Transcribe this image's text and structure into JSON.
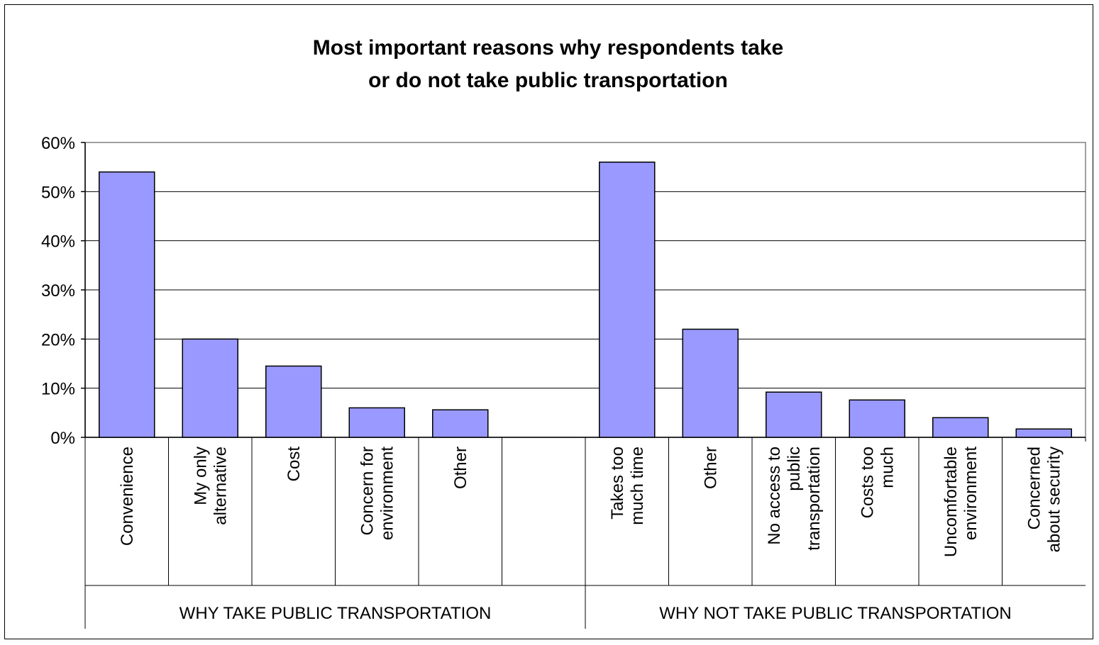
{
  "chart_data": {
    "type": "bar",
    "title_lines": [
      "Most important reasons why respondents take",
      "or do not take public transportation"
    ],
    "ylim": [
      0,
      0.6
    ],
    "yticks": [
      0,
      0.1,
      0.2,
      0.3,
      0.4,
      0.5,
      0.6
    ],
    "ytick_labels": [
      "0%",
      "10%",
      "20%",
      "30%",
      "40%",
      "50%",
      "60%"
    ],
    "grid": true,
    "bar_color": "#9999ff",
    "groups": [
      {
        "name": "WHY TAKE PUBLIC TRANSPORTATION",
        "categories": [
          {
            "label": [
              "Convenience"
            ],
            "value": 0.54
          },
          {
            "label": [
              "My only",
              "alternative"
            ],
            "value": 0.2
          },
          {
            "label": [
              "Cost"
            ],
            "value": 0.145
          },
          {
            "label": [
              "Concern for",
              "environment"
            ],
            "value": 0.06
          },
          {
            "label": [
              "Other"
            ],
            "value": 0.056
          },
          {
            "label": [],
            "value": null
          }
        ]
      },
      {
        "name": "WHY NOT TAKE PUBLIC TRANSPORTATION",
        "categories": [
          {
            "label": [
              "Takes too",
              "much time"
            ],
            "value": 0.56
          },
          {
            "label": [
              "Other"
            ],
            "value": 0.22
          },
          {
            "label": [
              "No access to",
              "public",
              "transportation"
            ],
            "value": 0.092
          },
          {
            "label": [
              "Costs too",
              "much"
            ],
            "value": 0.076
          },
          {
            "label": [
              "Uncomfortable",
              "environment"
            ],
            "value": 0.04
          },
          {
            "label": [
              "Concerned",
              "about security"
            ],
            "value": 0.017
          }
        ]
      }
    ]
  }
}
